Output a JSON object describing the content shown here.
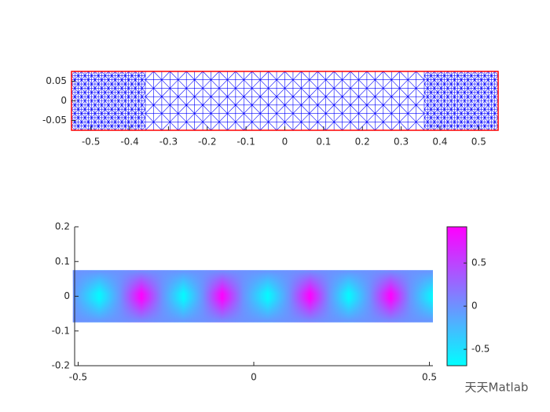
{
  "chart_data": [
    {
      "type": "mesh",
      "xlim": [
        -0.55,
        0.55
      ],
      "ylim": [
        -0.075,
        0.075
      ],
      "xticks": [
        -0.5,
        -0.4,
        -0.3,
        -0.2,
        -0.1,
        0,
        0.1,
        0.2,
        0.3,
        0.4,
        0.5
      ],
      "yticks": [
        -0.05,
        0,
        0.05
      ],
      "color": "#0000ff",
      "edge_color": "#ff0000"
    },
    {
      "type": "heatmap",
      "xlim": [
        -0.51,
        0.51
      ],
      "ylim": [
        -0.2,
        0.2
      ],
      "xticks": [
        -0.5,
        0,
        0.5
      ],
      "yticks": [
        -0.2,
        -0.1,
        0,
        0.1,
        0.2
      ],
      "field_ylim": [
        -0.075,
        0.075
      ],
      "x": [
        -0.515,
        -0.44,
        -0.38,
        -0.32,
        -0.26,
        -0.2,
        -0.145,
        -0.09,
        -0.03,
        0.04,
        0.1,
        0.16,
        0.215,
        0.27,
        0.33,
        0.39,
        0.445,
        0.51
      ],
      "values": [
        0,
        -0.65,
        0,
        0.9,
        0,
        -0.65,
        0,
        0.9,
        0,
        -0.65,
        0,
        0.9,
        0,
        -0.65,
        0,
        0.9,
        0,
        -0.65
      ],
      "clim": [
        -0.69,
        0.92
      ],
      "colorbar_ticks": [
        -0.5,
        0,
        0.5
      ],
      "colormap": "cool"
    }
  ],
  "watermark": "天天Matlab"
}
